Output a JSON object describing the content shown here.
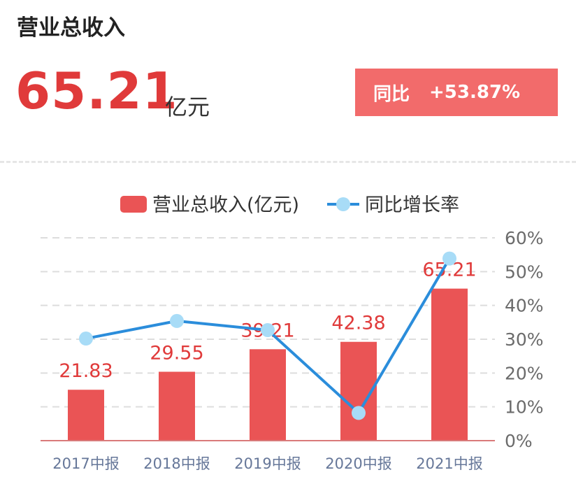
{
  "header": {
    "title": "营业总收入",
    "value": "65.21",
    "unit": "亿元",
    "yoy_label": "同比",
    "yoy_value": "+53.87%"
  },
  "colors": {
    "bar": "#ea5455",
    "line": "#2b8ddb",
    "marker": "#a8dcf7",
    "value_text": "#e03a3a",
    "tick_text": "#667799",
    "right_tick_text": "#6b6b6b",
    "grid": "#dddddd"
  },
  "chart_data": {
    "type": "bar",
    "categories": [
      "2017中报",
      "2018中报",
      "2019中报",
      "2020中报",
      "2021中报"
    ],
    "series": [
      {
        "name": "营业总收入(亿元)",
        "type": "bar",
        "axis": "left",
        "values": [
          21.83,
          29.55,
          39.21,
          42.38,
          65.21
        ],
        "data_labels": [
          "21.83",
          "29.55",
          "39.21",
          "42.38",
          "65.21"
        ]
      },
      {
        "name": "同比增长率",
        "type": "line",
        "axis": "right",
        "values": [
          30.2,
          35.4,
          32.7,
          8.2,
          53.87
        ]
      }
    ],
    "y_right": {
      "min": 0,
      "max": 60,
      "ticks": [
        "0%",
        "10%",
        "20%",
        "30%",
        "40%",
        "50%",
        "60%"
      ]
    },
    "y_left": {
      "min": 0,
      "max": 87,
      "ticks_shown": false
    },
    "grid": true,
    "legend_position": "top-center"
  }
}
